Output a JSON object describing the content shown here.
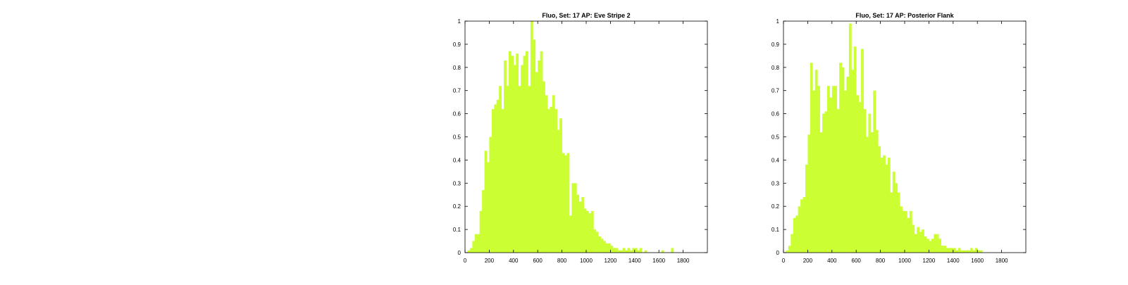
{
  "colors": {
    "bar": "#ccff33",
    "axis": "#000000",
    "background": "#ffffff"
  },
  "chart_data": [
    {
      "type": "bar",
      "title": "Fluo, Set: 17 AP: Eve Stripe 2",
      "xlabel": "",
      "ylabel": "",
      "xlim": [
        0,
        2000
      ],
      "ylim": [
        0,
        1
      ],
      "grid": false,
      "xticks": [
        0,
        200,
        400,
        600,
        800,
        1000,
        1200,
        1400,
        1600,
        1800
      ],
      "yticks": [
        0,
        0.1,
        0.2,
        0.3,
        0.4,
        0.5,
        0.6,
        0.7,
        0.8,
        0.9,
        1
      ],
      "bin_width": 20,
      "x": [
        20,
        40,
        60,
        80,
        100,
        120,
        140,
        160,
        180,
        200,
        220,
        240,
        260,
        280,
        300,
        320,
        340,
        360,
        380,
        400,
        420,
        440,
        460,
        480,
        500,
        520,
        540,
        560,
        580,
        600,
        620,
        640,
        660,
        680,
        700,
        720,
        740,
        760,
        780,
        800,
        820,
        840,
        860,
        880,
        900,
        920,
        940,
        960,
        980,
        1000,
        1020,
        1040,
        1060,
        1080,
        1100,
        1120,
        1140,
        1160,
        1180,
        1200,
        1220,
        1240,
        1260,
        1280,
        1300,
        1320,
        1340,
        1360,
        1380,
        1400,
        1420,
        1440,
        1460,
        1480,
        1500,
        1520,
        1540,
        1560,
        1580,
        1600,
        1620,
        1640,
        1660,
        1680,
        1700,
        1720,
        1740,
        1760,
        1780,
        1800,
        1820,
        1840,
        1860,
        1880,
        1900,
        1920,
        1940,
        1960,
        1980
      ],
      "values": [
        0.01,
        0.02,
        0.05,
        0.08,
        0.08,
        0.18,
        0.27,
        0.44,
        0.39,
        0.5,
        0.62,
        0.64,
        0.66,
        0.72,
        0.62,
        0.83,
        0.72,
        0.87,
        0.85,
        0.81,
        0.86,
        0.72,
        0.81,
        0.85,
        0.87,
        0.72,
        1.0,
        0.92,
        0.78,
        0.83,
        0.87,
        0.74,
        0.68,
        0.62,
        0.63,
        0.68,
        0.62,
        0.53,
        0.58,
        0.43,
        0.42,
        0.43,
        0.16,
        0.3,
        0.3,
        0.25,
        0.22,
        0.24,
        0.19,
        0.18,
        0.17,
        0.18,
        0.1,
        0.09,
        0.07,
        0.06,
        0.05,
        0.04,
        0.04,
        0.03,
        0.02,
        0.02,
        0.01,
        0.01,
        0.02,
        0.01,
        0.02,
        0.01,
        0.02,
        0.02,
        0.01,
        0.02,
        0,
        0.01,
        0,
        0,
        0,
        0,
        0,
        0,
        0.01,
        0,
        0,
        0,
        0.02,
        0,
        0,
        0,
        0,
        0,
        0,
        0,
        0,
        0,
        0,
        0,
        0,
        0,
        0
      ]
    },
    {
      "type": "bar",
      "title": "Fluo, Set: 17 AP: Posterior Flank",
      "xlabel": "",
      "ylabel": "",
      "xlim": [
        0,
        2000
      ],
      "ylim": [
        0,
        1
      ],
      "grid": false,
      "xticks": [
        0,
        200,
        400,
        600,
        800,
        1000,
        1200,
        1400,
        1600,
        1800
      ],
      "yticks": [
        0,
        0.1,
        0.2,
        0.3,
        0.4,
        0.5,
        0.6,
        0.7,
        0.8,
        0.9,
        1
      ],
      "bin_width": 20,
      "x": [
        20,
        40,
        60,
        80,
        100,
        120,
        140,
        160,
        180,
        200,
        220,
        240,
        260,
        280,
        300,
        320,
        340,
        360,
        380,
        400,
        420,
        440,
        460,
        480,
        500,
        520,
        540,
        560,
        580,
        600,
        620,
        640,
        660,
        680,
        700,
        720,
        740,
        760,
        780,
        800,
        820,
        840,
        860,
        880,
        900,
        920,
        940,
        960,
        980,
        1000,
        1020,
        1040,
        1060,
        1080,
        1100,
        1120,
        1140,
        1160,
        1180,
        1200,
        1220,
        1240,
        1260,
        1280,
        1300,
        1320,
        1340,
        1360,
        1380,
        1400,
        1420,
        1440,
        1460,
        1480,
        1500,
        1520,
        1540,
        1560,
        1580,
        1600,
        1620,
        1640,
        1660,
        1680,
        1700,
        1720,
        1740,
        1760,
        1780,
        1800,
        1820,
        1840,
        1860,
        1880,
        1900,
        1920,
        1940,
        1960,
        1980
      ],
      "values": [
        0.01,
        0.03,
        0.08,
        0.15,
        0.16,
        0.2,
        0.23,
        0.24,
        0.38,
        0.51,
        0.82,
        0.7,
        0.79,
        0.72,
        0.52,
        0.6,
        0.61,
        0.72,
        0.67,
        0.72,
        0.72,
        0.62,
        0.82,
        0.8,
        0.7,
        0.76,
        0.99,
        0.79,
        0.89,
        0.68,
        0.65,
        0.88,
        0.62,
        0.5,
        0.6,
        0.52,
        0.7,
        0.53,
        0.46,
        0.41,
        0.42,
        0.38,
        0.41,
        0.26,
        0.35,
        0.3,
        0.26,
        0.2,
        0.18,
        0.18,
        0.15,
        0.18,
        0.12,
        0.08,
        0.11,
        0.09,
        0.1,
        0.07,
        0.06,
        0.05,
        0.06,
        0.08,
        0.08,
        0.06,
        0.03,
        0.03,
        0.02,
        0.02,
        0.02,
        0.02,
        0.01,
        0.02,
        0.01,
        0.01,
        0.01,
        0.01,
        0.02,
        0.01,
        0.02,
        0.01,
        0.01,
        0,
        0,
        0,
        0,
        0,
        0,
        0,
        0,
        0,
        0,
        0,
        0,
        0,
        0,
        0,
        0,
        0,
        0
      ]
    }
  ]
}
